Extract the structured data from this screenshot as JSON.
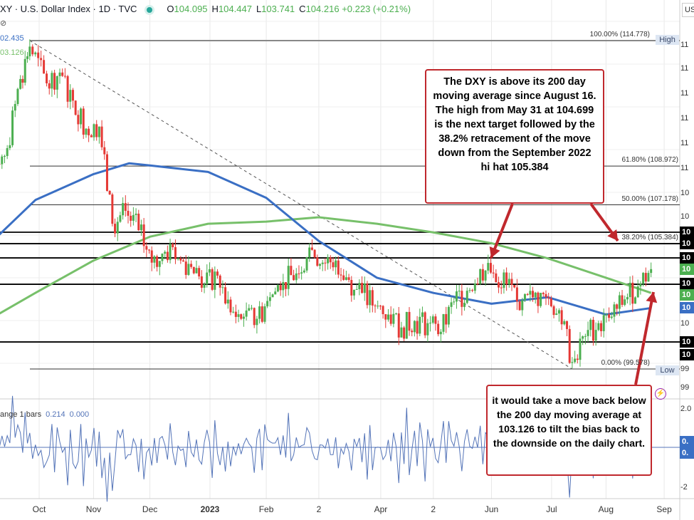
{
  "header": {
    "symbol": "XY · U.S. Dollar Index · 1D · TVC",
    "open_label": "O",
    "open": "104.095",
    "high_label": "H",
    "high": "104.447",
    "low_label": "L",
    "low": "103.741",
    "close_label": "C",
    "close": "104.216",
    "change": "+0.223 (+0.21%)"
  },
  "ma_tags": {
    "ma100": "02.435",
    "ma200": "03.126"
  },
  "currency": "US",
  "colors": {
    "up": "#4caf50",
    "down": "#e53935",
    "ma100": "#3a6fc4",
    "ma200": "#77c06a",
    "annotation": "#c0282d",
    "osc": "#5474b8"
  },
  "fib": [
    {
      "label": "100.00% (114.778)",
      "price": 114.778
    },
    {
      "label": "61.80% (108.972)",
      "price": 108.972
    },
    {
      "label": "50.00% (107.178)",
      "price": 107.178
    },
    {
      "label": "38.20% (105.384)",
      "price": 105.384
    },
    {
      "label": "0.00% (99.578)",
      "price": 99.578
    }
  ],
  "high_tag": "High",
  "low_tag": "Low",
  "horizontal_levels": [
    105.91,
    105.38,
    104.72,
    103.5,
    100.83
  ],
  "price_axis": [
    "11",
    "11",
    "11",
    "11",
    "11",
    "11",
    "10",
    "10",
    "10",
    "99",
    "99"
  ],
  "price_tags": [
    {
      "text": "10",
      "color": "#000"
    },
    {
      "text": "10",
      "color": "#000"
    },
    {
      "text": "10",
      "color": "#000"
    },
    {
      "text": "10",
      "color": "#4caf50"
    },
    {
      "text": "10",
      "color": "#000"
    },
    {
      "text": "10",
      "color": "#4caf50"
    },
    {
      "text": "10",
      "color": "#3a6fc4"
    },
    {
      "text": "10",
      "color": "#000"
    },
    {
      "text": "10",
      "color": "#000"
    }
  ],
  "osc_axis": [
    "2.0",
    "-2"
  ],
  "osc_tags": [
    "0.",
    "0."
  ],
  "oscillator": {
    "label": "ange 1 bars",
    "v1": "0.214",
    "v2": "0.000"
  },
  "x_axis": [
    {
      "label": "Oct",
      "date": "2022-10-03"
    },
    {
      "label": "Nov",
      "date": "2022-11-01"
    },
    {
      "label": "Dec",
      "date": "2022-12-01"
    },
    {
      "label": "2023",
      "date": "2023-01-02",
      "bold": true
    },
    {
      "label": "Feb",
      "date": "2023-02-01"
    },
    {
      "label": "2",
      "date": "2023-03-01"
    },
    {
      "label": "Apr",
      "date": "2023-04-03"
    },
    {
      "label": "2",
      "date": "2023-05-01"
    },
    {
      "label": "Jun",
      "date": "2023-06-01"
    },
    {
      "label": "Jul",
      "date": "2023-07-03"
    },
    {
      "label": "Aug",
      "date": "2023-08-01"
    },
    {
      "label": "Sep",
      "date": "2023-09-01"
    }
  ],
  "annotations": [
    {
      "text": "The DXY is above its 200 day moving average since August 16. The high from May 31 at 104.699 is the next target followed by the 38.2% retracement of the move down from the September 2022 hi hat 105.384"
    },
    {
      "text": "it would take a move back below the 200 day moving average at 103.126 to tilt the bias back to the downside on the daily chart."
    }
  ],
  "chart_data": {
    "type": "candlestick",
    "series_closes": {
      "dates": [
        "2022-09-02",
        "2022-09-09",
        "2022-09-16",
        "2022-09-23",
        "2022-09-28",
        "2022-10-07",
        "2022-10-14",
        "2022-10-21",
        "2022-10-28",
        "2022-11-04",
        "2022-11-11",
        "2022-11-18",
        "2022-11-25",
        "2022-12-02",
        "2022-12-09",
        "2022-12-16",
        "2022-12-23",
        "2022-12-30",
        "2023-01-06",
        "2023-01-13",
        "2023-01-20",
        "2023-01-27",
        "2023-02-03",
        "2023-02-10",
        "2023-02-17",
        "2023-02-24",
        "2023-03-03",
        "2023-03-10",
        "2023-03-17",
        "2023-03-24",
        "2023-03-31",
        "2023-04-07",
        "2023-04-14",
        "2023-04-21",
        "2023-04-28",
        "2023-05-05",
        "2023-05-12",
        "2023-05-19",
        "2023-05-26",
        "2023-06-02",
        "2023-06-09",
        "2023-06-16",
        "2023-06-23",
        "2023-06-30",
        "2023-07-07",
        "2023-07-14",
        "2023-07-21",
        "2023-07-28",
        "2023-08-04",
        "2023-08-11",
        "2023-08-18",
        "2023-08-25"
      ],
      "close": [
        109.5,
        109.0,
        109.8,
        113.0,
        114.5,
        112.8,
        113.3,
        112.0,
        110.7,
        110.8,
        106.3,
        106.9,
        106.0,
        104.5,
        105.0,
        104.7,
        104.3,
        103.5,
        103.9,
        102.2,
        102.0,
        101.9,
        102.9,
        103.6,
        104.0,
        105.2,
        104.5,
        104.6,
        103.7,
        103.1,
        102.5,
        102.1,
        101.5,
        101.8,
        101.7,
        101.3,
        102.7,
        103.2,
        104.2,
        104.0,
        103.5,
        102.3,
        102.9,
        102.9,
        102.3,
        99.9,
        101.1,
        101.7,
        102.0,
        102.8,
        103.4,
        104.2
      ]
    },
    "ma100": {
      "dates": [
        "2022-09-01",
        "2022-10-01",
        "2022-11-01",
        "2022-11-20",
        "2022-12-01",
        "2023-01-01",
        "2023-02-01",
        "2023-03-01",
        "2023-04-01",
        "2023-05-01",
        "2023-06-01",
        "2023-07-01",
        "2023-08-01",
        "2023-08-25"
      ],
      "values": [
        104.9,
        107.4,
        108.6,
        109.1,
        109.0,
        108.7,
        107.5,
        105.5,
        103.8,
        103.1,
        102.6,
        102.9,
        102.1,
        102.4
      ]
    },
    "ma200": {
      "dates": [
        "2022-09-01",
        "2022-10-01",
        "2022-11-01",
        "2022-12-01",
        "2023-01-01",
        "2023-02-01",
        "2023-03-01",
        "2023-04-01",
        "2023-05-01",
        "2023-06-01",
        "2023-07-01",
        "2023-08-01",
        "2023-08-25"
      ],
      "values": [
        101.6,
        103.1,
        104.6,
        105.7,
        106.3,
        106.4,
        106.6,
        106.3,
        105.9,
        105.4,
        104.7,
        103.8,
        103.1
      ]
    },
    "trendline": {
      "from": {
        "date": "2022-09-28",
        "price": 114.778
      },
      "to": {
        "date": "2023-07-14",
        "price": 99.578
      }
    },
    "ylim": [
      98.5,
      116.5
    ]
  }
}
